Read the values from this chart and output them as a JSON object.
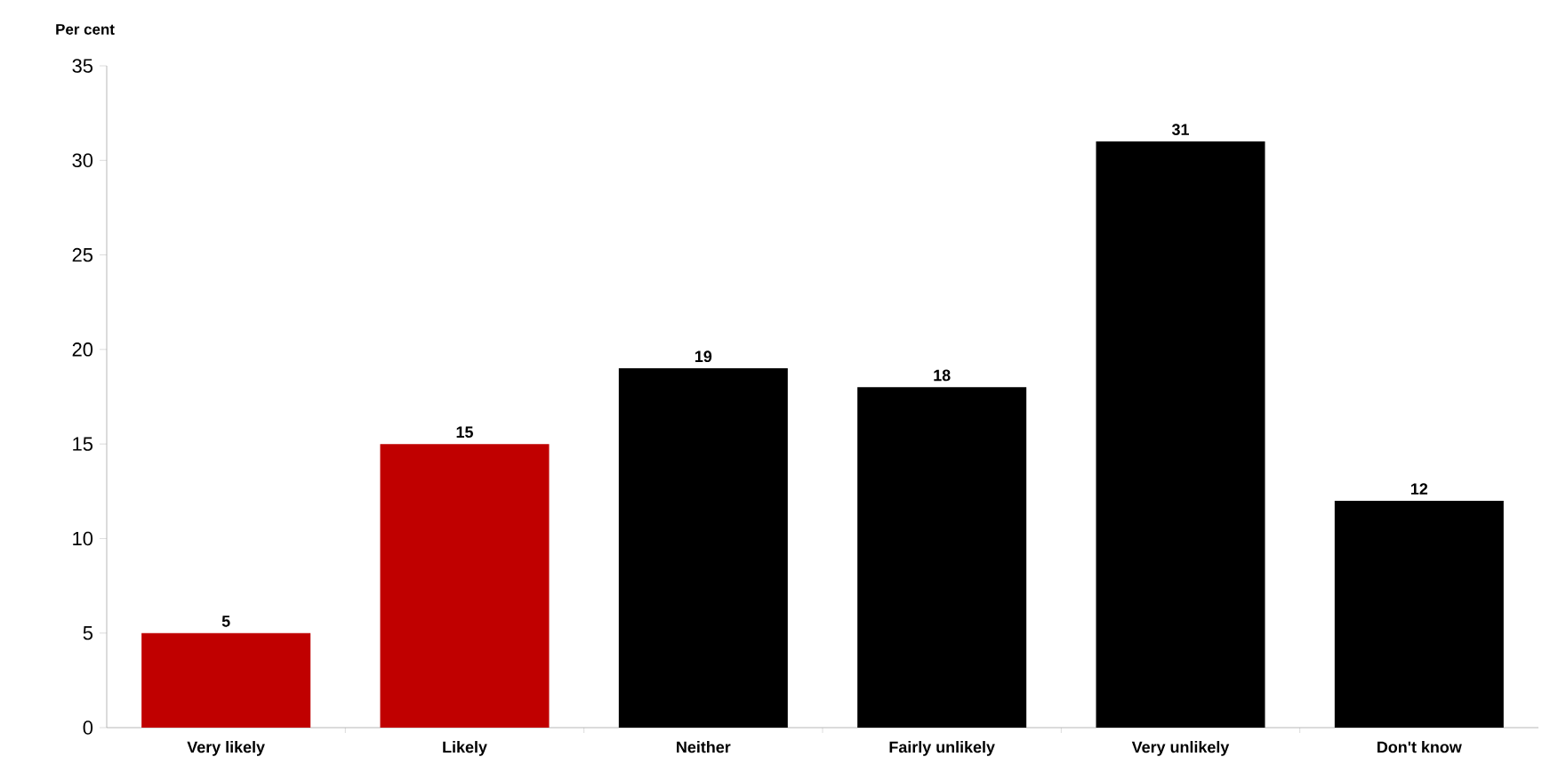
{
  "chart_data": {
    "type": "bar",
    "ylabel": "Per cent",
    "categories": [
      "Very likely",
      "Likely",
      "Neither",
      "Fairly unlikely",
      "Very unlikely",
      "Don't know"
    ],
    "values": [
      5,
      15,
      19,
      18,
      31,
      12
    ],
    "colors": [
      "#c00000",
      "#c00000",
      "#000000",
      "#000000",
      "#000000",
      "#000000"
    ],
    "ylim": [
      0,
      35
    ],
    "yticks": [
      0,
      5,
      10,
      15,
      20,
      25,
      30,
      35
    ],
    "data_labels": true
  }
}
